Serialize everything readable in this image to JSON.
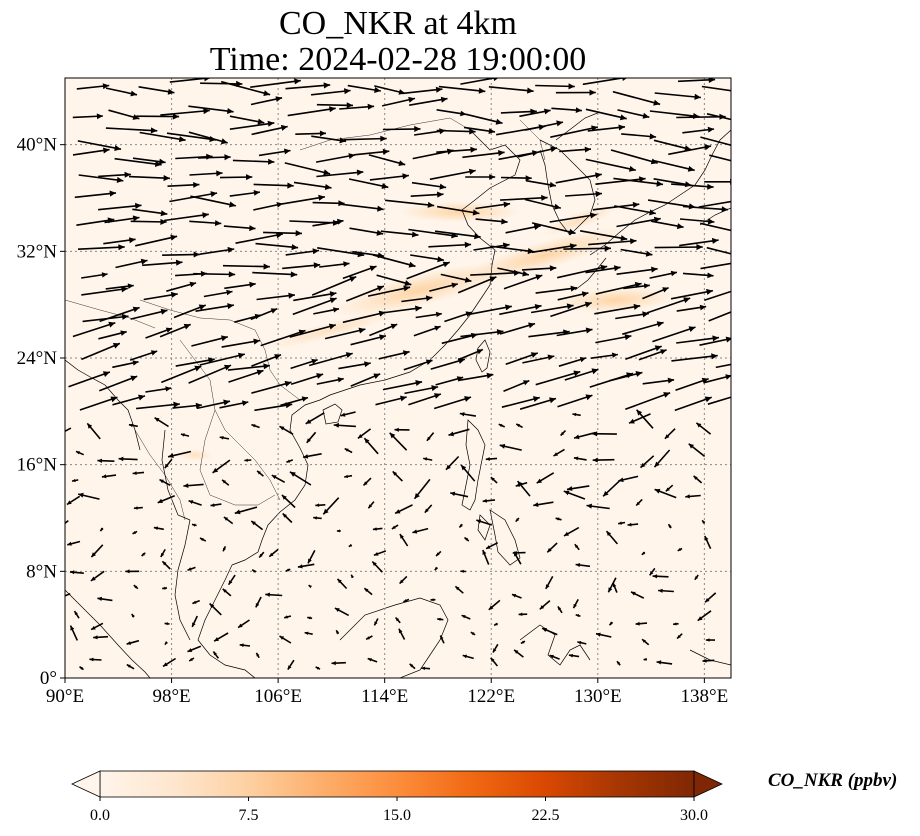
{
  "title": {
    "line1": "CO_NKR at 4km",
    "line2": "Time: 2024-02-28 19:00:00"
  },
  "map": {
    "lon_range": [
      90,
      140
    ],
    "lat_range": [
      0,
      45
    ],
    "lon_ticks": [
      {
        "value": 90,
        "label": "90°E"
      },
      {
        "value": 98,
        "label": "98°E"
      },
      {
        "value": 106,
        "label": "106°E"
      },
      {
        "value": 114,
        "label": "114°E"
      },
      {
        "value": 122,
        "label": "122°E"
      },
      {
        "value": 130,
        "label": "130°E"
      },
      {
        "value": 138,
        "label": "138°E"
      }
    ],
    "lat_ticks": [
      {
        "value": 0,
        "label": "0°"
      },
      {
        "value": 8,
        "label": "8°N"
      },
      {
        "value": 16,
        "label": "16°N"
      },
      {
        "value": 24,
        "label": "24°N"
      },
      {
        "value": 32,
        "label": "32°N"
      },
      {
        "value": 40,
        "label": "40°N"
      }
    ],
    "gridlines": true,
    "background_color": "#fff5eb",
    "plume_color": "#fdd3a2"
  },
  "colorbar": {
    "label": "CO_NKR (ppbv)",
    "ticks": [
      "0.0",
      "7.5",
      "15.0",
      "22.5",
      "30.0"
    ],
    "range": [
      0,
      30
    ],
    "colormap": [
      "#fff5eb",
      "#fee6ce",
      "#fdd0a2",
      "#fdae6b",
      "#fd8d3c",
      "#f16913",
      "#d94801",
      "#a63603",
      "#7f2704"
    ],
    "extend": "both"
  }
}
